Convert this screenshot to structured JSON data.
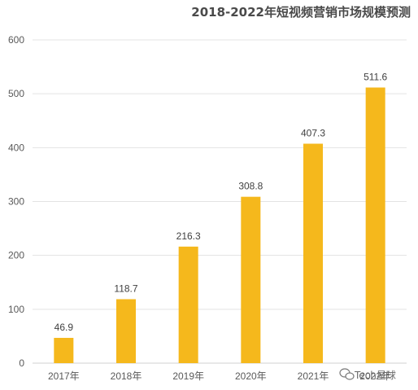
{
  "chart_data": {
    "type": "bar",
    "title": "2018-2022年短视频营销市场规模预测",
    "categories": [
      "2017年",
      "2018年",
      "2019年",
      "2020年",
      "2021年",
      "2022年"
    ],
    "values": [
      46.9,
      118.7,
      216.3,
      308.8,
      407.3,
      511.6
    ],
    "data_labels": [
      "46.9",
      "118.7",
      "216.3",
      "308.8",
      "407.3",
      "511.6"
    ],
    "ylim": [
      0,
      600
    ],
    "yticks": [
      "0",
      "100",
      "200",
      "300",
      "400",
      "500",
      "600"
    ],
    "grid": true,
    "bar_color": "#F5B81C"
  },
  "watermark": {
    "text": "Tech星球",
    "icon": "wechat-bubble-icon"
  }
}
